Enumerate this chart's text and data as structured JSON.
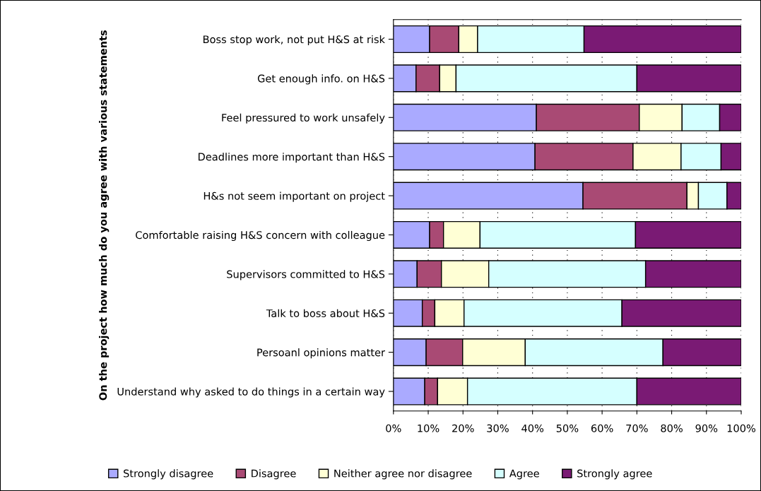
{
  "chart_data": {
    "type": "bar",
    "orientation": "horizontal",
    "stacked": true,
    "ylabel": "On the project how much do you agree with various statements",
    "categories": [
      "Boss stop work, not put H&S at risk",
      "Get enough info. on H&S",
      "Feel pressured to work unsafely",
      "Deadlines more important than H&S",
      "H&s not seem important on project",
      "Comfortable raising H&S concern with colleague",
      "Supervisors committed to H&S",
      "Talk to boss about H&S",
      "Persoanl opinions matter",
      "Understand why asked to do things in a certain way"
    ],
    "series": [
      {
        "name": "Strongly disagree",
        "color": "#aaaaff",
        "values": [
          10.4,
          6.5,
          41.1,
          40.7,
          54.5,
          10.4,
          6.8,
          8.3,
          9.4,
          9.0
        ]
      },
      {
        "name": "Disagree",
        "color": "#a94a74",
        "values": [
          8.4,
          6.8,
          29.6,
          28.2,
          29.9,
          4.0,
          7.0,
          3.6,
          10.5,
          3.7
        ]
      },
      {
        "name": "Neither agree nor disagree",
        "color": "#ffffd5",
        "values": [
          5.4,
          4.7,
          12.3,
          13.8,
          3.3,
          10.5,
          13.6,
          8.4,
          18.0,
          8.6
        ]
      },
      {
        "name": "Agree",
        "color": "#d5ffff",
        "values": [
          30.6,
          52.0,
          10.8,
          11.5,
          8.2,
          44.7,
          45.1,
          45.4,
          39.6,
          48.7
        ]
      },
      {
        "name": "Strongly agree",
        "color": "#7a1a74",
        "values": [
          45.2,
          30.0,
          6.2,
          5.8,
          4.1,
          30.4,
          27.5,
          34.3,
          22.5,
          30.0
        ]
      }
    ],
    "xlim": [
      0,
      100
    ],
    "xticks": [
      {
        "value": 0,
        "label": "0%"
      },
      {
        "value": 10,
        "label": "10%"
      },
      {
        "value": 20,
        "label": "20%"
      },
      {
        "value": 30,
        "label": "30%"
      },
      {
        "value": 40,
        "label": "40%"
      },
      {
        "value": 50,
        "label": "50%"
      },
      {
        "value": 60,
        "label": "60%"
      },
      {
        "value": 70,
        "label": "70%"
      },
      {
        "value": 80,
        "label": "80%"
      },
      {
        "value": 90,
        "label": "90%"
      },
      {
        "value": 100,
        "label": "100%"
      }
    ],
    "grid": "x",
    "legend": "bottom"
  }
}
